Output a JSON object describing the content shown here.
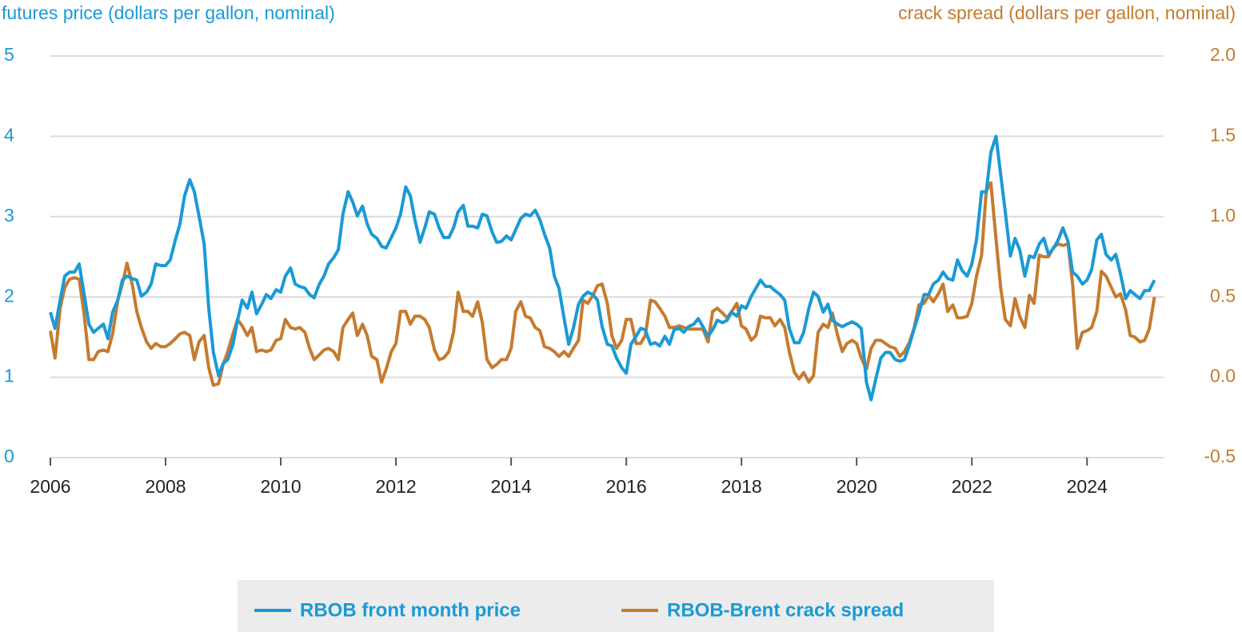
{
  "chart_data": {
    "type": "line",
    "ylabel": "futures price (dollars per gallon, nominal)",
    "y2label": "crack spread (dollars per gallon, nominal)",
    "xlim": [
      2006,
      2025.33
    ],
    "xticks": [
      2006,
      2008,
      2010,
      2012,
      2014,
      2016,
      2018,
      2020,
      2022,
      2024
    ],
    "ylim": [
      0,
      5
    ],
    "yticks": [
      0,
      1,
      2,
      3,
      4,
      5
    ],
    "y2lim": [
      -0.5,
      2.0
    ],
    "y2ticks": [
      -0.5,
      {
        "value": 0,
        "label": "0.0"
      },
      0.5,
      {
        "value": 1,
        "label": "1.0"
      },
      1.5,
      {
        "value": 2,
        "label": "2.0"
      }
    ],
    "grid": true,
    "legend": "bottom",
    "x": [
      2006,
      2006.08,
      2006.17,
      2006.25,
      2006.33,
      2006.42,
      2006.5,
      2006.58,
      2006.67,
      2006.75,
      2006.83,
      2006.92,
      2007,
      2007.08,
      2007.17,
      2007.25,
      2007.33,
      2007.42,
      2007.5,
      2007.58,
      2007.67,
      2007.75,
      2007.83,
      2007.92,
      2008,
      2008.08,
      2008.17,
      2008.25,
      2008.33,
      2008.42,
      2008.5,
      2008.58,
      2008.67,
      2008.75,
      2008.83,
      2008.92,
      2009,
      2009.08,
      2009.17,
      2009.25,
      2009.33,
      2009.42,
      2009.5,
      2009.58,
      2009.67,
      2009.75,
      2009.83,
      2009.92,
      2010,
      2010.08,
      2010.17,
      2010.25,
      2010.33,
      2010.42,
      2010.5,
      2010.58,
      2010.67,
      2010.75,
      2010.83,
      2010.92,
      2011,
      2011.08,
      2011.17,
      2011.25,
      2011.33,
      2011.42,
      2011.5,
      2011.58,
      2011.67,
      2011.75,
      2011.83,
      2011.92,
      2012,
      2012.08,
      2012.17,
      2012.25,
      2012.33,
      2012.42,
      2012.5,
      2012.58,
      2012.67,
      2012.75,
      2012.83,
      2012.92,
      2013,
      2013.08,
      2013.17,
      2013.25,
      2013.33,
      2013.42,
      2013.5,
      2013.58,
      2013.67,
      2013.75,
      2013.83,
      2013.92,
      2014,
      2014.08,
      2014.17,
      2014.25,
      2014.33,
      2014.42,
      2014.5,
      2014.58,
      2014.67,
      2014.75,
      2014.83,
      2014.92,
      2015,
      2015.08,
      2015.17,
      2015.25,
      2015.33,
      2015.42,
      2015.5,
      2015.58,
      2015.67,
      2015.75,
      2015.83,
      2015.92,
      2016,
      2016.08,
      2016.17,
      2016.25,
      2016.33,
      2016.42,
      2016.5,
      2016.58,
      2016.67,
      2016.75,
      2016.83,
      2016.92,
      2017,
      2017.08,
      2017.17,
      2017.25,
      2017.33,
      2017.42,
      2017.5,
      2017.58,
      2017.67,
      2017.75,
      2017.83,
      2017.92,
      2018,
      2018.08,
      2018.17,
      2018.25,
      2018.33,
      2018.42,
      2018.5,
      2018.58,
      2018.67,
      2018.75,
      2018.83,
      2018.92,
      2019,
      2019.08,
      2019.17,
      2019.25,
      2019.33,
      2019.42,
      2019.5,
      2019.58,
      2019.67,
      2019.75,
      2019.83,
      2019.92,
      2020,
      2020.08,
      2020.17,
      2020.25,
      2020.33,
      2020.42,
      2020.5,
      2020.58,
      2020.67,
      2020.75,
      2020.83,
      2020.92,
      2021,
      2021.08,
      2021.17,
      2021.25,
      2021.33,
      2021.42,
      2021.5,
      2021.58,
      2021.67,
      2021.75,
      2021.83,
      2021.92,
      2022,
      2022.08,
      2022.17,
      2022.25,
      2022.33,
      2022.42,
      2022.5,
      2022.58,
      2022.67,
      2022.75,
      2022.83,
      2022.92,
      2023,
      2023.08,
      2023.17,
      2023.25,
      2023.33,
      2023.42,
      2023.5,
      2023.58,
      2023.67,
      2023.75,
      2023.83,
      2023.92,
      2024,
      2024.08,
      2024.17,
      2024.25,
      2024.33,
      2024.42,
      2024.5,
      2024.58,
      2024.67,
      2024.75,
      2024.83,
      2024.92,
      2025,
      2025.08,
      2025.17
    ],
    "series": [
      {
        "name": "RBOB front month price",
        "color": "#1a9ad6",
        "axis": "y",
        "values": [
          1.81,
          1.61,
          1.96,
          2.26,
          2.31,
          2.31,
          2.41,
          2.06,
          1.66,
          1.56,
          1.61,
          1.66,
          1.48,
          1.81,
          1.96,
          2.21,
          2.26,
          2.23,
          2.21,
          2.01,
          2.06,
          2.16,
          2.41,
          2.39,
          2.39,
          2.46,
          2.71,
          2.91,
          3.26,
          3.46,
          3.31,
          3.01,
          2.66,
          1.86,
          1.31,
          1.02,
          1.17,
          1.22,
          1.41,
          1.71,
          1.96,
          1.86,
          2.06,
          1.79,
          1.91,
          2.03,
          1.98,
          2.09,
          2.06,
          2.26,
          2.36,
          2.16,
          2.13,
          2.11,
          2.03,
          1.99,
          2.16,
          2.26,
          2.41,
          2.49,
          2.59,
          3.03,
          3.31,
          3.18,
          3.01,
          3.13,
          2.91,
          2.78,
          2.73,
          2.63,
          2.61,
          2.74,
          2.86,
          3.03,
          3.37,
          3.26,
          2.96,
          2.68,
          2.86,
          3.06,
          3.03,
          2.86,
          2.74,
          2.74,
          2.86,
          3.06,
          3.14,
          2.88,
          2.88,
          2.86,
          3.03,
          3.01,
          2.81,
          2.68,
          2.69,
          2.76,
          2.71,
          2.84,
          2.98,
          3.03,
          3.01,
          3.08,
          2.96,
          2.78,
          2.61,
          2.26,
          2.11,
          1.73,
          1.41,
          1.61,
          1.91,
          2.01,
          2.06,
          2.03,
          1.96,
          1.63,
          1.41,
          1.39,
          1.24,
          1.12,
          1.05,
          1.41,
          1.51,
          1.61,
          1.59,
          1.41,
          1.43,
          1.39,
          1.51,
          1.41,
          1.59,
          1.61,
          1.56,
          1.63,
          1.66,
          1.73,
          1.63,
          1.51,
          1.59,
          1.71,
          1.68,
          1.71,
          1.81,
          1.76,
          1.89,
          1.86,
          2.01,
          2.11,
          2.21,
          2.13,
          2.13,
          2.08,
          2.03,
          1.96,
          1.61,
          1.43,
          1.43,
          1.56,
          1.86,
          2.06,
          2.01,
          1.81,
          1.91,
          1.71,
          1.66,
          1.63,
          1.66,
          1.69,
          1.66,
          1.61,
          0.94,
          0.72,
          0.97,
          1.24,
          1.31,
          1.31,
          1.22,
          1.2,
          1.22,
          1.41,
          1.61,
          1.79,
          2.03,
          2.03,
          2.16,
          2.21,
          2.31,
          2.23,
          2.21,
          2.46,
          2.33,
          2.26,
          2.41,
          2.71,
          3.31,
          3.31,
          3.8,
          4.0,
          3.53,
          3.06,
          2.51,
          2.73,
          2.59,
          2.26,
          2.51,
          2.49,
          2.66,
          2.73,
          2.53,
          2.61,
          2.71,
          2.86,
          2.69,
          2.31,
          2.26,
          2.16,
          2.21,
          2.34,
          2.71,
          2.78,
          2.53,
          2.46,
          2.53,
          2.29,
          1.98,
          2.08,
          2.03,
          1.98,
          2.08,
          2.08,
          2.21
        ]
      },
      {
        "name": "RBOB-Brent crack spread",
        "color": "#c57b2f",
        "axis": "y2",
        "values": [
          0.29,
          0.12,
          0.43,
          0.56,
          0.61,
          0.62,
          0.61,
          0.41,
          0.11,
          0.11,
          0.16,
          0.17,
          0.16,
          0.27,
          0.48,
          0.58,
          0.71,
          0.58,
          0.41,
          0.31,
          0.22,
          0.18,
          0.21,
          0.19,
          0.19,
          0.21,
          0.24,
          0.27,
          0.28,
          0.26,
          0.11,
          0.22,
          0.26,
          0.06,
          -0.05,
          -0.04,
          0.08,
          0.16,
          0.27,
          0.36,
          0.32,
          0.26,
          0.31,
          0.16,
          0.17,
          0.16,
          0.17,
          0.23,
          0.24,
          0.36,
          0.31,
          0.3,
          0.31,
          0.28,
          0.18,
          0.11,
          0.14,
          0.17,
          0.18,
          0.16,
          0.11,
          0.31,
          0.36,
          0.4,
          0.26,
          0.33,
          0.26,
          0.13,
          0.11,
          -0.03,
          0.05,
          0.16,
          0.21,
          0.41,
          0.41,
          0.33,
          0.38,
          0.38,
          0.36,
          0.31,
          0.17,
          0.11,
          0.12,
          0.16,
          0.28,
          0.53,
          0.41,
          0.41,
          0.38,
          0.47,
          0.34,
          0.11,
          0.06,
          0.08,
          0.11,
          0.11,
          0.18,
          0.41,
          0.47,
          0.38,
          0.37,
          0.31,
          0.29,
          0.19,
          0.18,
          0.16,
          0.13,
          0.16,
          0.13,
          0.18,
          0.23,
          0.48,
          0.46,
          0.51,
          0.57,
          0.58,
          0.46,
          0.26,
          0.18,
          0.23,
          0.36,
          0.36,
          0.21,
          0.21,
          0.26,
          0.48,
          0.47,
          0.43,
          0.38,
          0.31,
          0.31,
          0.32,
          0.31,
          0.3,
          0.3,
          0.3,
          0.3,
          0.22,
          0.41,
          0.43,
          0.4,
          0.37,
          0.41,
          0.46,
          0.32,
          0.3,
          0.23,
          0.26,
          0.38,
          0.37,
          0.37,
          0.32,
          0.36,
          0.31,
          0.16,
          0.03,
          -0.01,
          0.03,
          -0.03,
          0.01,
          0.28,
          0.33,
          0.31,
          0.4,
          0.26,
          0.16,
          0.21,
          0.23,
          0.21,
          0.12,
          0.05,
          0.18,
          0.23,
          0.23,
          0.21,
          0.19,
          0.18,
          0.13,
          0.16,
          0.22,
          0.31,
          0.45,
          0.46,
          0.51,
          0.47,
          0.52,
          0.58,
          0.41,
          0.45,
          0.37,
          0.37,
          0.38,
          0.46,
          0.63,
          0.76,
          1.16,
          1.21,
          0.86,
          0.56,
          0.36,
          0.32,
          0.49,
          0.38,
          0.31,
          0.51,
          0.46,
          0.76,
          0.75,
          0.75,
          0.81,
          0.83,
          0.82,
          0.83,
          0.58,
          0.18,
          0.28,
          0.29,
          0.31,
          0.41,
          0.66,
          0.63,
          0.56,
          0.5,
          0.52,
          0.42,
          0.26,
          0.25,
          0.22,
          0.23,
          0.3,
          0.5
        ]
      }
    ]
  }
}
